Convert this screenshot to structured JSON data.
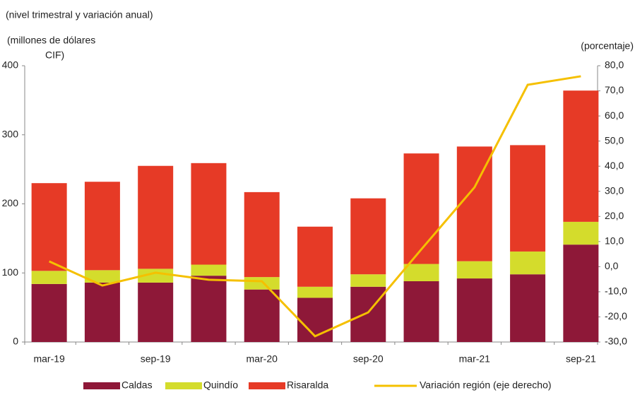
{
  "chart_data": {
    "type": "bar",
    "subtitle": "(nivel trimestral y variación anual)",
    "ylabel": [
      "(millones de dólares",
      "CIF)"
    ],
    "y2label": "(porcentaje)",
    "categories": [
      "mar-19",
      null,
      "sep-19",
      null,
      "mar-20",
      null,
      "sep-20",
      null,
      "mar-21",
      null,
      "sep-21"
    ],
    "series": [
      {
        "name": "Caldas",
        "color": "#8e1838",
        "values": [
          84,
          86,
          86,
          96,
          76,
          64,
          80,
          88,
          92,
          98,
          141
        ]
      },
      {
        "name": "Quindío",
        "color": "#d4dc2c",
        "values": [
          19,
          18,
          20,
          16,
          18,
          16,
          18,
          25,
          25,
          33,
          33
        ]
      },
      {
        "name": "Risaralda",
        "color": "#e63a26",
        "values": [
          127,
          128,
          149,
          147,
          123,
          87,
          110,
          160,
          166,
          154,
          190
        ]
      },
      {
        "name": "Variación región (eje derecho)",
        "color": "#f5c000",
        "type": "line",
        "axis": "y2",
        "values": [
          2.1,
          -7.5,
          -2.4,
          -5.2,
          -5.8,
          -27.7,
          -18.2,
          6.9,
          31.6,
          72.4,
          75.8
        ]
      }
    ],
    "ylim": [
      0,
      400
    ],
    "yticks": [
      0,
      100,
      200,
      300,
      400
    ],
    "y2lim": [
      -30,
      80
    ],
    "y2ticks": [
      {
        "value": 80,
        "label": "80,0"
      },
      {
        "value": 70,
        "label": "70,0"
      },
      {
        "value": 60,
        "label": "60,0"
      },
      {
        "value": 50,
        "label": "50,0"
      },
      {
        "value": 40,
        "label": "40,0"
      },
      {
        "value": 30,
        "label": "30,0"
      },
      {
        "value": 20,
        "label": "20,0"
      },
      {
        "value": 10,
        "label": "10,0"
      },
      {
        "value": 0,
        "label": "0,0"
      },
      {
        "value": -10,
        "label": "-10,0"
      },
      {
        "value": -20,
        "label": "-20,0"
      },
      {
        "value": -30,
        "label": "-30,0"
      }
    ]
  }
}
